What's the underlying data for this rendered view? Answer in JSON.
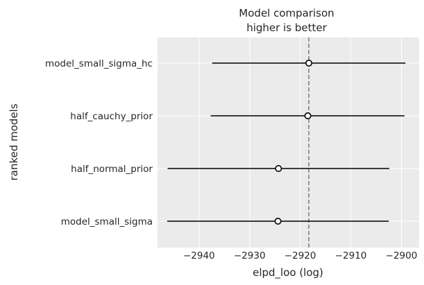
{
  "chart_data": {
    "type": "forest",
    "title": "Model comparison\nhigher is better",
    "xlabel": "elpd_loo (log)",
    "ylabel": "ranked models",
    "xlim": [
      -2948.2,
      -2896.5
    ],
    "xticks": [
      -2940,
      -2930,
      -2920,
      -2910,
      -2900
    ],
    "xtick_labels": [
      "−2940",
      "−2930",
      "−2920",
      "−2910",
      "−2900"
    ],
    "reference_line": -2918.3,
    "models": [
      {
        "name": "model_small_sigma_hc",
        "elpd": -2918.3,
        "lower": -2937.4,
        "upper": -2899.2
      },
      {
        "name": "half_cauchy_prior",
        "elpd": -2918.5,
        "lower": -2937.7,
        "upper": -2899.4
      },
      {
        "name": "half_normal_prior",
        "elpd": -2924.3,
        "lower": -2946.2,
        "upper": -2902.4
      },
      {
        "name": "model_small_sigma",
        "elpd": -2924.4,
        "lower": -2946.3,
        "upper": -2902.5
      }
    ],
    "grid": true,
    "colors": {
      "background": "#ebebeb",
      "grid": "#ffffff",
      "line": "#000000",
      "reference": "#808080"
    }
  }
}
